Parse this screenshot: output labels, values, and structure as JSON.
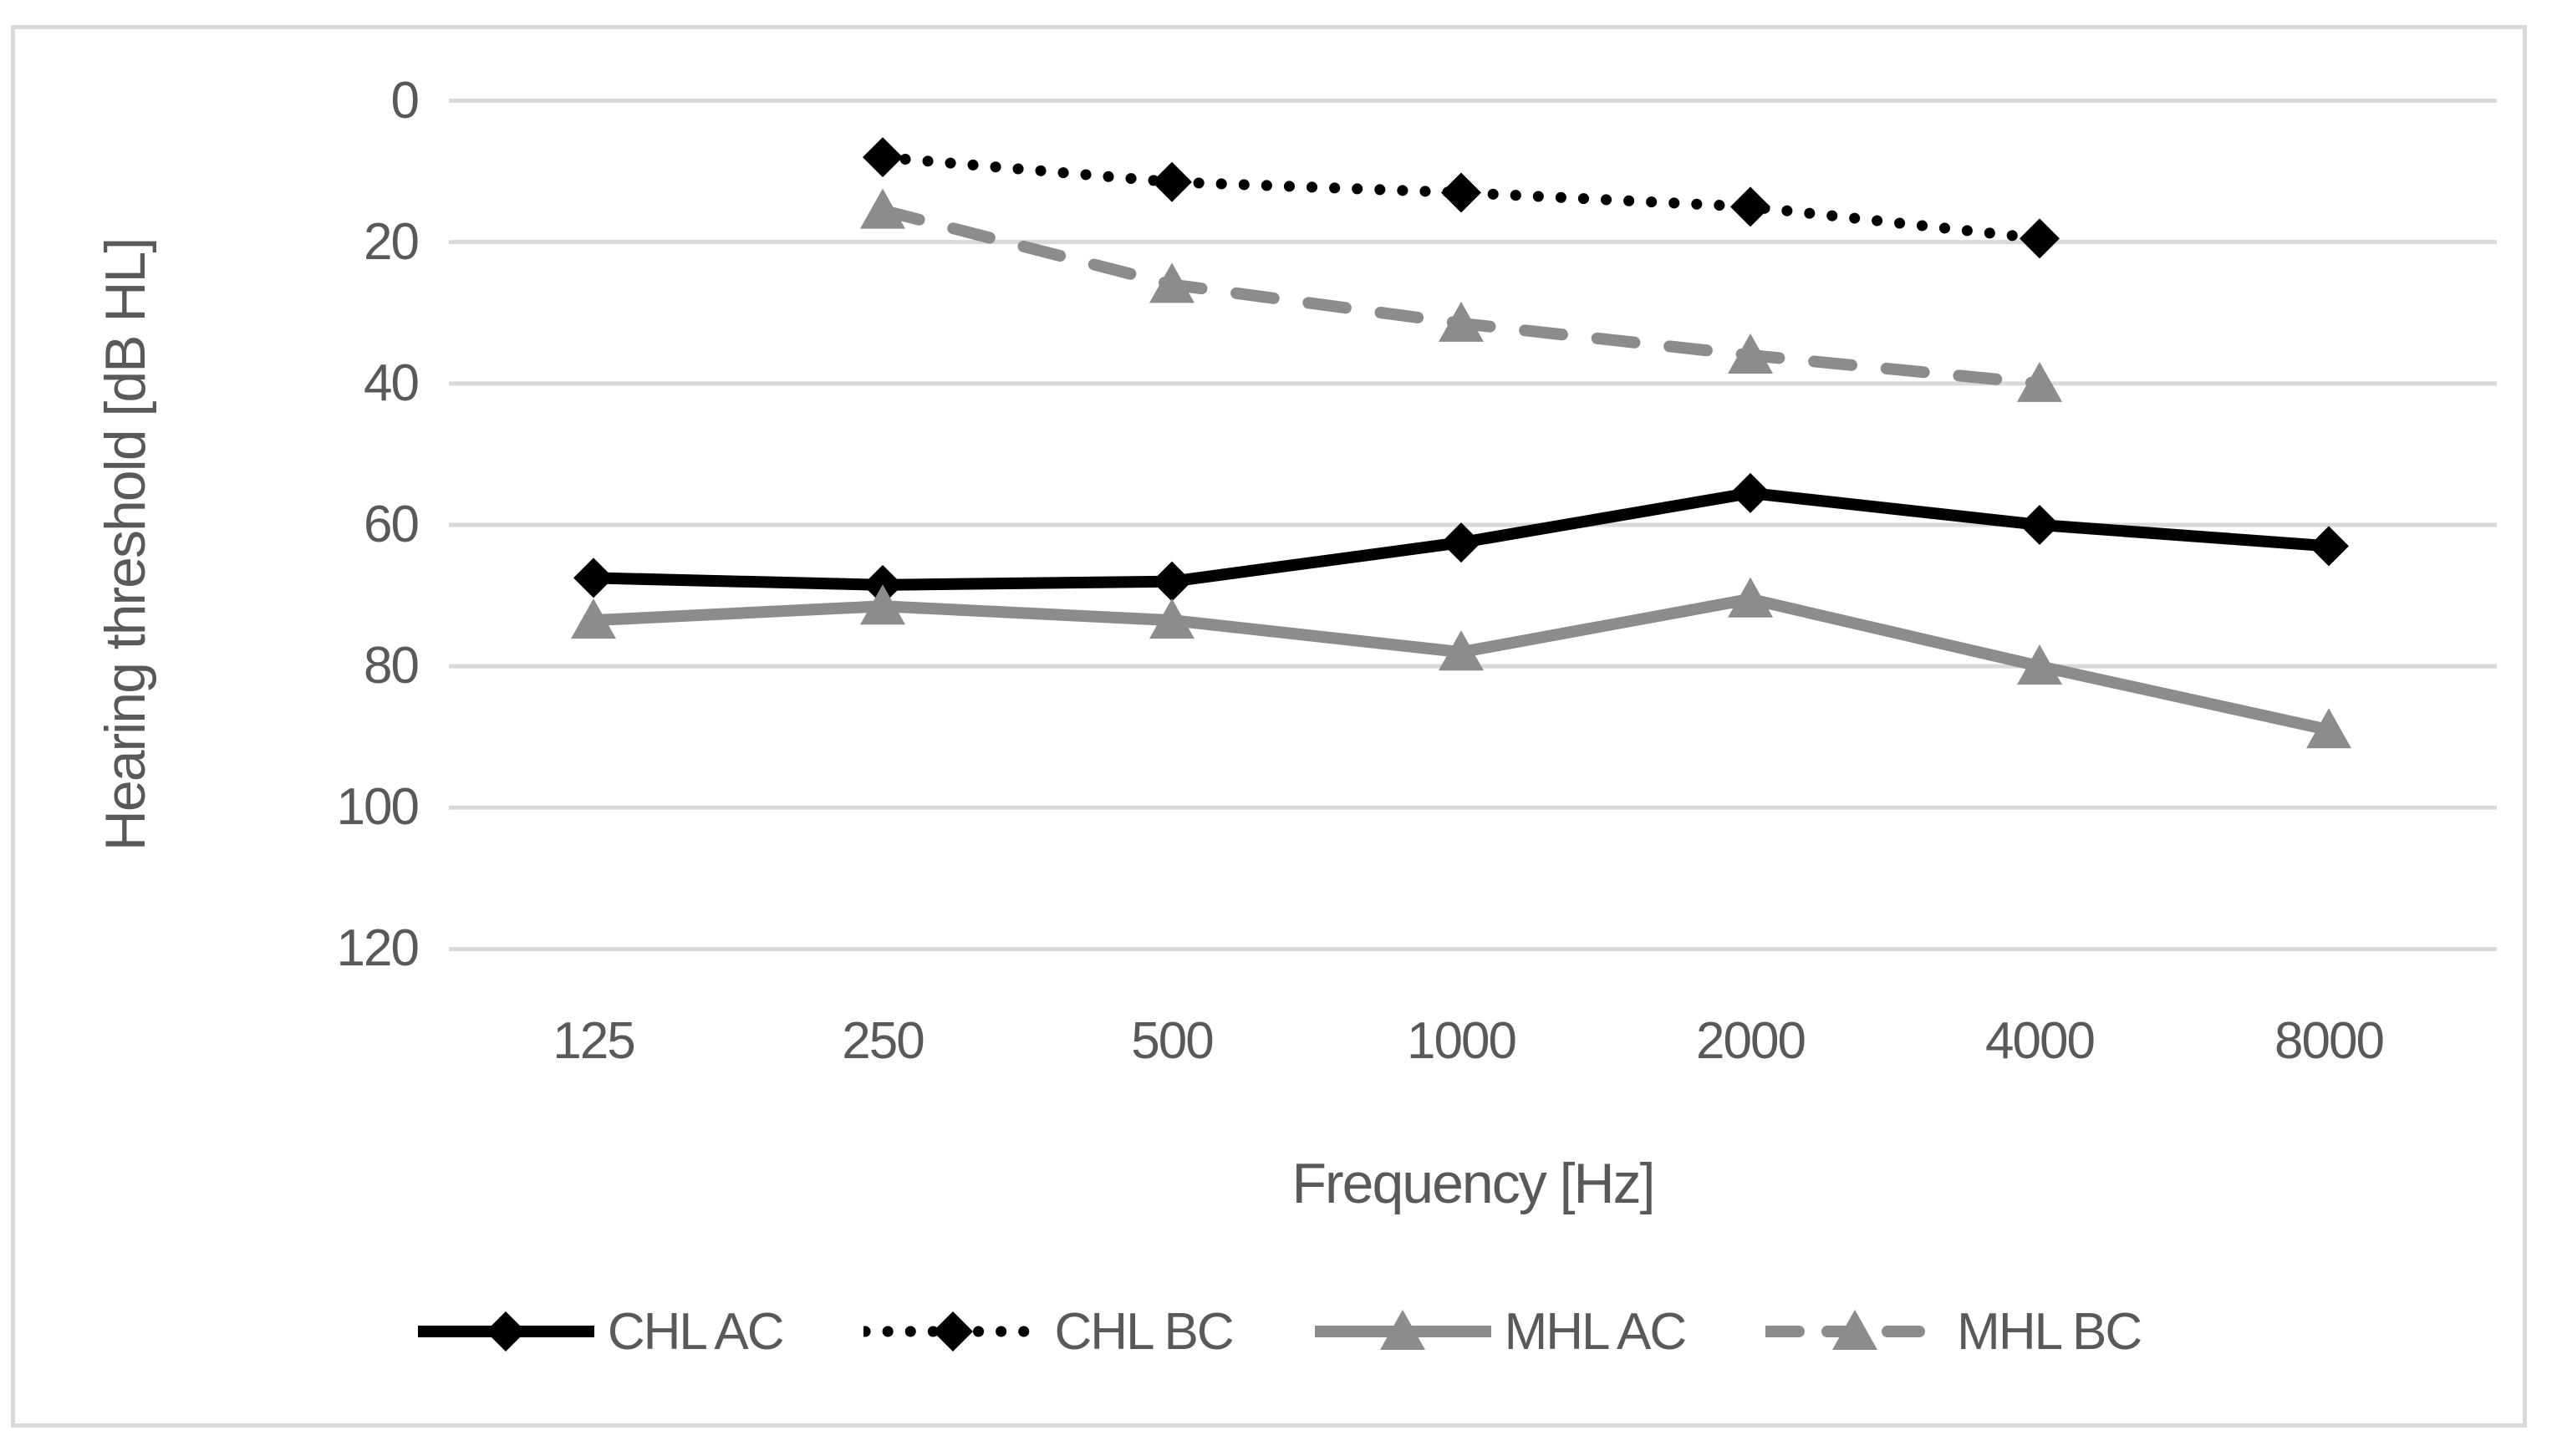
{
  "chart_data": {
    "type": "line",
    "title": "",
    "xlabel": "Frequency [Hz]",
    "ylabel": "Hearing threshold [dB HL]",
    "categories": [
      "125",
      "250",
      "500",
      "1000",
      "2000",
      "4000",
      "8000"
    ],
    "y_ticks": [
      "0",
      "20",
      "40",
      "60",
      "80",
      "100",
      "120"
    ],
    "y_axis": {
      "min": 0,
      "max": 120,
      "step": 20,
      "inverted": true
    },
    "grid": "horizontal",
    "legend_position": "bottom",
    "series": [
      {
        "name": "CHL AC",
        "values": [
          67.5,
          68.5,
          68,
          62.5,
          55.5,
          60,
          63
        ],
        "color": "#000000",
        "line_style": "solid",
        "marker": "diamond"
      },
      {
        "name": "CHL BC",
        "values": [
          null,
          8,
          11.5,
          13,
          15,
          19.5,
          null
        ],
        "color": "#000000",
        "line_style": "dotted",
        "marker": "diamond"
      },
      {
        "name": "MHL AC",
        "values": [
          73.5,
          71.5,
          73.5,
          78,
          70.5,
          80,
          89
        ],
        "color": "#8c8c8c",
        "line_style": "solid",
        "marker": "triangle"
      },
      {
        "name": "MHL BC",
        "values": [
          null,
          15.5,
          26,
          31.5,
          36,
          40,
          null
        ],
        "color": "#8c8c8c",
        "line_style": "dashed",
        "marker": "triangle"
      }
    ],
    "colors": {
      "text": "#595959",
      "gridline": "#d9d9d9",
      "frame_border": "#d9d9d9",
      "background": "#ffffff"
    }
  }
}
